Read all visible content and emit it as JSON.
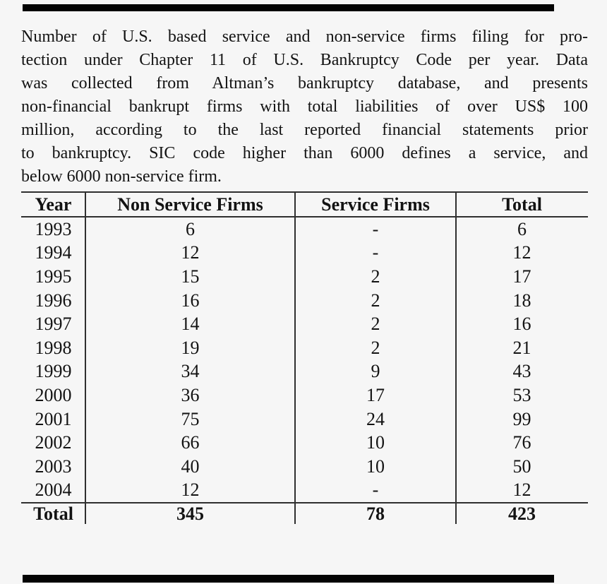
{
  "colors": {
    "background": "#f6f6f6",
    "text": "#131313",
    "rule": "#2f2f2f",
    "bar": "#040404"
  },
  "caption": {
    "lines": [
      "Number of U.S. based service and non-service firms filing for pro-",
      "tection under Chapter 11 of U.S. Bankruptcy Code per year. Data",
      "was collected from Altman’s bankruptcy database, and presents",
      "non-financial bankrupt firms with total liabilities of over US$ 100",
      "million, according to the last reported financial statements prior",
      "to bankruptcy. SIC code higher than 6000 defines a service, and",
      "below 6000 non-service firm."
    ]
  },
  "table": {
    "headers": [
      "Year",
      "Non Service Firms",
      "Service Firms",
      "Total"
    ],
    "rows": [
      [
        "1993",
        "6",
        "-",
        "6"
      ],
      [
        "1994",
        "12",
        "-",
        "12"
      ],
      [
        "1995",
        "15",
        "2",
        "17"
      ],
      [
        "1996",
        "16",
        "2",
        "18"
      ],
      [
        "1997",
        "14",
        "2",
        "16"
      ],
      [
        "1998",
        "19",
        "2",
        "21"
      ],
      [
        "1999",
        "34",
        "9",
        "43"
      ],
      [
        "2000",
        "36",
        "17",
        "53"
      ],
      [
        "2001",
        "75",
        "24",
        "99"
      ],
      [
        "2002",
        "66",
        "10",
        "76"
      ],
      [
        "2003",
        "40",
        "10",
        "50"
      ],
      [
        "2004",
        "12",
        "-",
        "12"
      ]
    ],
    "total_row": [
      "Total",
      "345",
      "78",
      "423"
    ]
  }
}
